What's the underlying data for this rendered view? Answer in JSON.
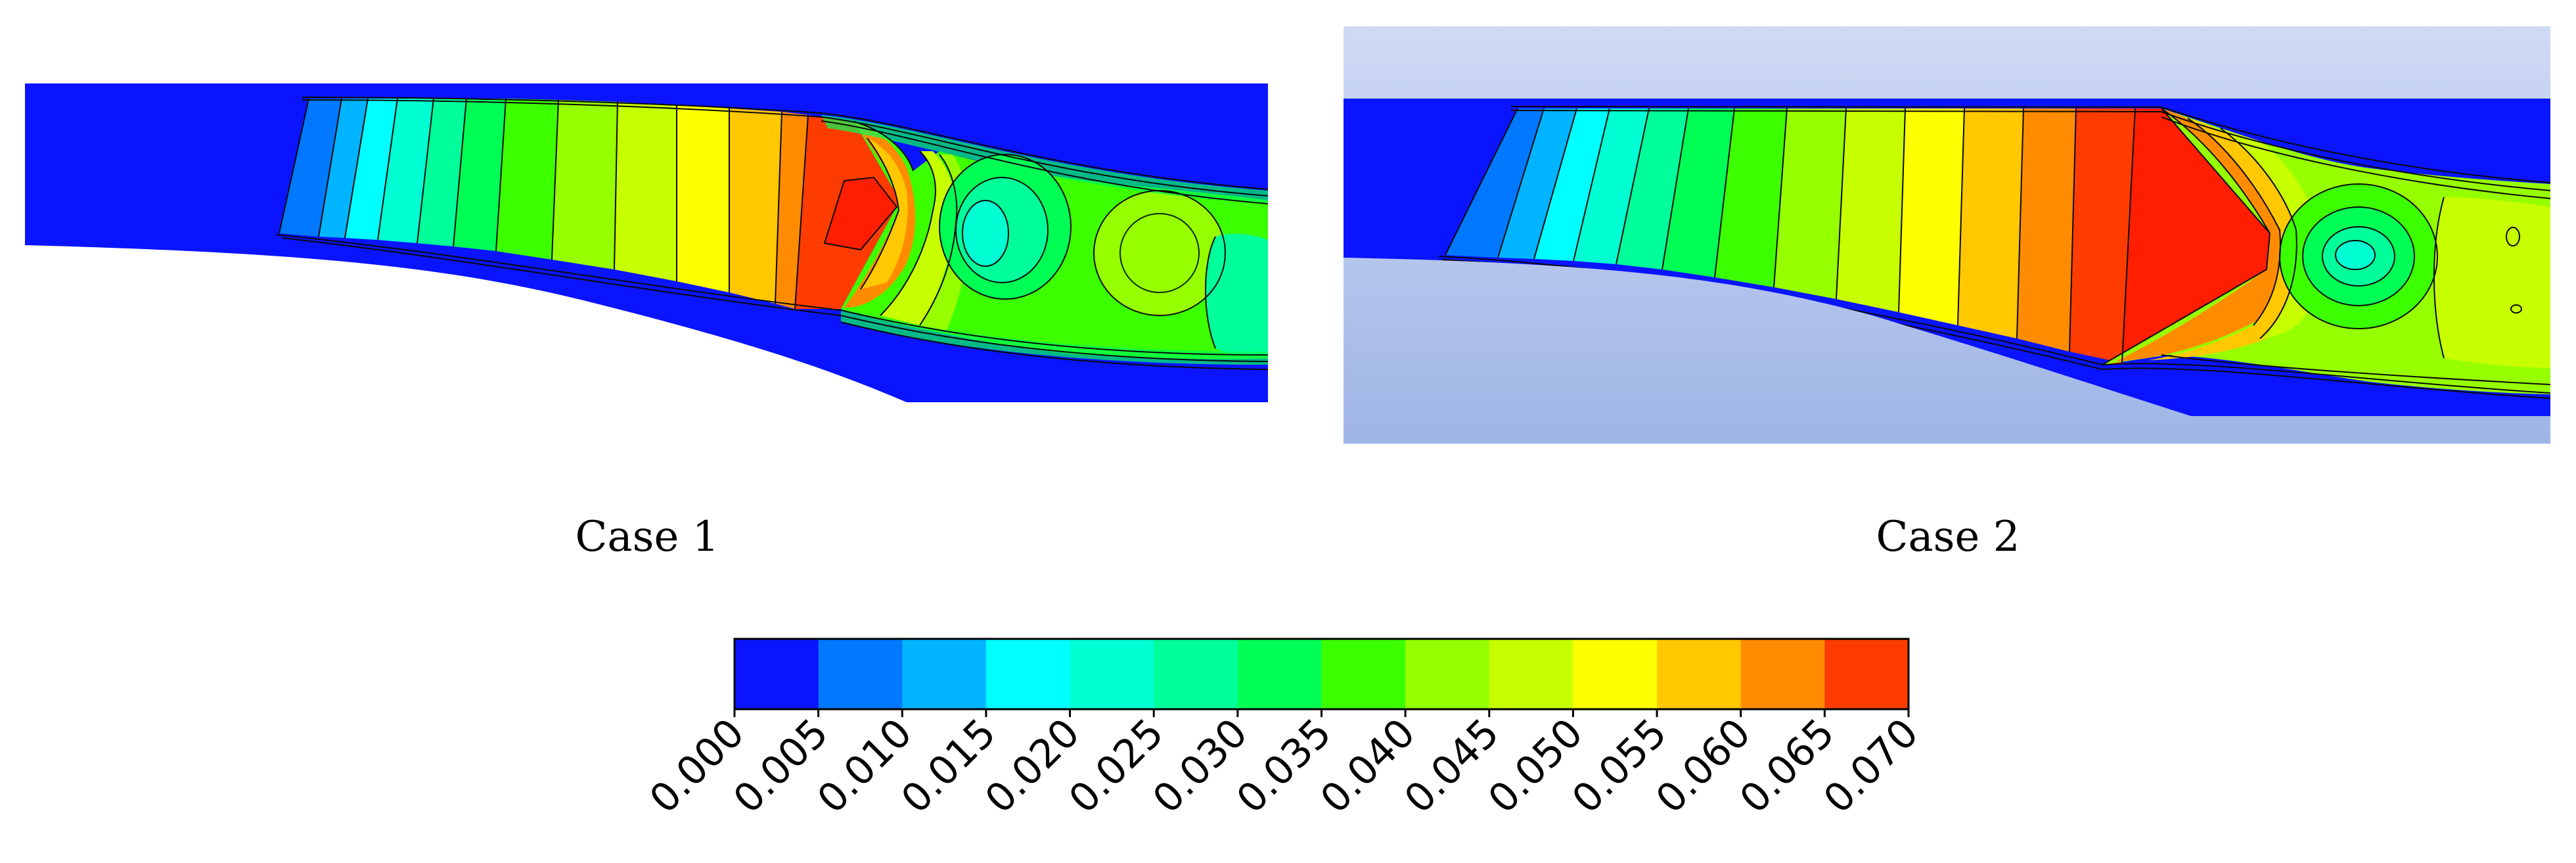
{
  "panels": [
    {
      "caption": "Case 1"
    },
    {
      "caption": "Case 2"
    }
  ],
  "colorbar": {
    "ticks": [
      "0.000",
      "0.005",
      "0.010",
      "0.015",
      "0.020",
      "0.025",
      "0.030",
      "0.035",
      "0.040",
      "0.045",
      "0.050",
      "0.055",
      "0.060",
      "0.065",
      "0.070"
    ],
    "colors": [
      "#0a14ff",
      "#0078ff",
      "#00b4ff",
      "#00ffff",
      "#00ffd2",
      "#00ff9a",
      "#00ff55",
      "#3cff00",
      "#96ff00",
      "#c8ff00",
      "#ffff00",
      "#ffc800",
      "#ff8c00",
      "#ff3c00"
    ]
  },
  "colors": {
    "background_fluid": "#0a14ff",
    "case2_backdrop_top": "#cfdaf4",
    "case2_backdrop_bottom": "#9fb5e6"
  }
}
